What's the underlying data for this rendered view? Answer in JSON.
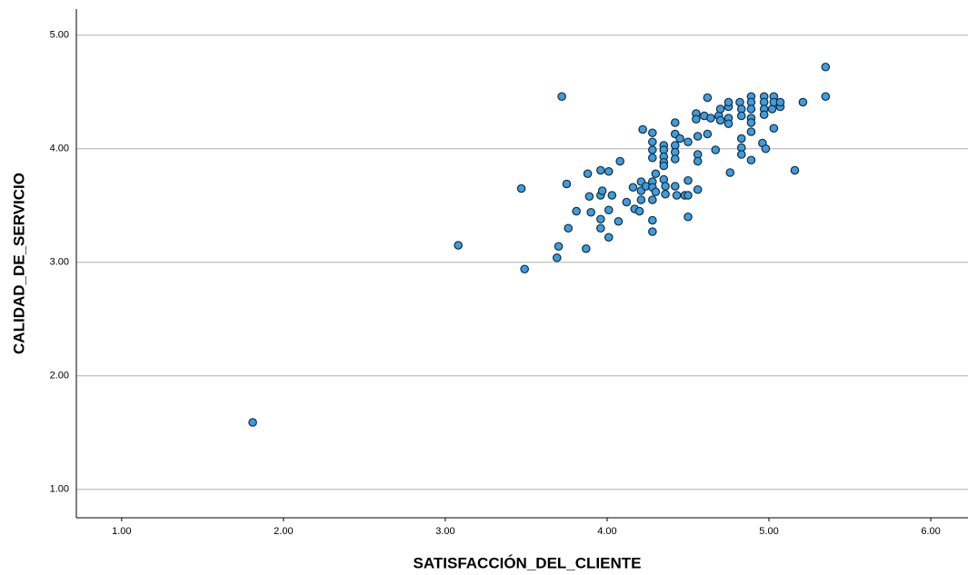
{
  "chart_data": {
    "type": "scatter",
    "x_label": "SATISFACCIÓN_DEL_CLIENTE",
    "y_label": "CALIDAD_DE_SERVICIO",
    "xlim": [
      0.72,
      6.23
    ],
    "ylim": [
      0.75,
      5.23
    ],
    "xticks": [
      {
        "value": 1,
        "label": "1.00"
      },
      {
        "value": 2,
        "label": "2.00"
      },
      {
        "value": 3,
        "label": "3.00"
      },
      {
        "value": 4,
        "label": "4.00"
      },
      {
        "value": 5,
        "label": "5.00"
      },
      {
        "value": 6,
        "label": "6.00"
      }
    ],
    "yticks": [
      {
        "value": 1,
        "label": "1.00"
      },
      {
        "value": 2,
        "label": "2.00"
      },
      {
        "value": 3,
        "label": "3.00"
      },
      {
        "value": 4,
        "label": "4.00"
      },
      {
        "value": 5,
        "label": "5.00"
      }
    ],
    "grid": true,
    "color": "#3a9ee0",
    "edge_color": "#1a2a3a",
    "x": [
      1.81,
      3.08,
      3.47,
      3.49,
      3.72,
      3.69,
      3.7,
      3.75,
      3.76,
      3.81,
      3.87,
      3.88,
      3.89,
      3.9,
      3.96,
      3.96,
      3.96,
      3.97,
      3.96,
      4.01,
      4.01,
      4.01,
      4.03,
      4.08,
      4.07,
      4.12,
      4.16,
      4.17,
      4.2,
      4.21,
      4.21,
      4.21,
      4.22,
      4.24,
      4.28,
      4.28,
      4.28,
      4.28,
      4.28,
      4.28,
      4.28,
      4.28,
      4.28,
      4.3,
      4.3,
      4.35,
      4.35,
      4.35,
      4.35,
      4.35,
      4.35,
      4.36,
      4.36,
      4.42,
      4.42,
      4.42,
      4.42,
      4.42,
      4.42,
      4.43,
      4.45,
      4.48,
      4.5,
      4.5,
      4.5,
      4.5,
      4.55,
      4.55,
      4.56,
      4.56,
      4.56,
      4.56,
      4.6,
      4.62,
      4.62,
      4.64,
      4.67,
      4.69,
      4.7,
      4.7,
      4.75,
      4.75,
      4.75,
      4.75,
      4.76,
      4.82,
      4.83,
      4.83,
      4.83,
      4.83,
      4.83,
      4.89,
      4.89,
      4.89,
      4.89,
      4.89,
      4.89,
      4.89,
      4.97,
      4.97,
      4.97,
      4.97,
      4.96,
      4.98,
      5.02,
      5.03,
      5.03,
      5.03,
      5.07,
      5.07,
      5.16,
      5.21,
      5.35,
      5.35
    ],
    "values": [
      1.59,
      3.15,
      3.65,
      2.94,
      4.46,
      3.04,
      3.14,
      3.69,
      3.3,
      3.45,
      3.12,
      3.78,
      3.58,
      3.44,
      3.81,
      3.59,
      3.38,
      3.63,
      3.3,
      3.8,
      3.22,
      3.46,
      3.59,
      3.89,
      3.36,
      3.53,
      3.66,
      3.47,
      3.45,
      3.71,
      3.63,
      3.55,
      4.17,
      3.67,
      4.14,
      4.06,
      3.99,
      3.92,
      3.71,
      3.66,
      3.55,
      3.37,
      3.27,
      3.78,
      3.62,
      4.03,
      3.99,
      3.93,
      3.88,
      3.85,
      3.73,
      3.67,
      3.6,
      4.23,
      4.13,
      4.03,
      3.97,
      3.91,
      3.67,
      3.59,
      4.09,
      3.59,
      4.06,
      3.72,
      3.59,
      3.4,
      4.31,
      4.26,
      4.11,
      3.95,
      3.89,
      3.64,
      4.29,
      4.45,
      4.13,
      4.27,
      3.99,
      4.29,
      4.35,
      4.25,
      4.37,
      4.41,
      4.27,
      4.22,
      3.79,
      4.41,
      4.35,
      4.29,
      4.09,
      4.01,
      3.95,
      4.46,
      4.41,
      4.35,
      4.27,
      4.23,
      4.15,
      3.9,
      4.46,
      4.41,
      4.35,
      4.3,
      4.05,
      4.0,
      4.35,
      4.18,
      4.46,
      4.41,
      4.37,
      4.41,
      3.81,
      4.41,
      4.72,
      4.46
    ]
  }
}
